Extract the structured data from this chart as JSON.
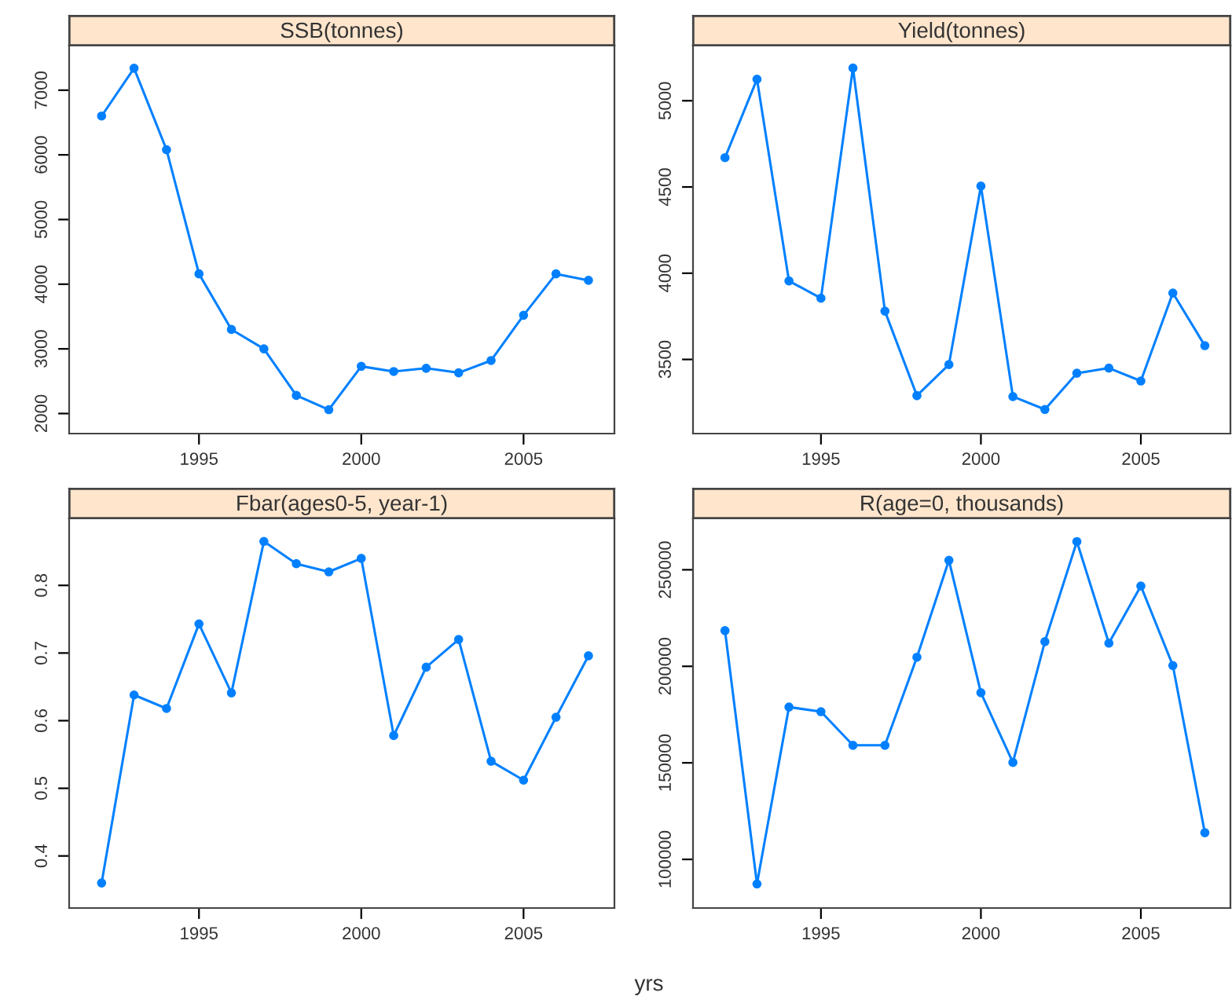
{
  "chart_data": [
    {
      "type": "line",
      "title": "SSB(tonnes)",
      "x": [
        1992,
        1993,
        1994,
        1995,
        1996,
        1997,
        1998,
        1999,
        2000,
        2001,
        2002,
        2003,
        2004,
        2005,
        2006,
        2007
      ],
      "series": [
        {
          "color": "#0080ff",
          "values": [
            6600,
            7340,
            6080,
            4160,
            3300,
            3000,
            2280,
            2060,
            2730,
            2650,
            2700,
            2630,
            2820,
            3520,
            4160,
            4060
          ]
        }
      ],
      "xlim": [
        1991.0,
        2007.8
      ],
      "ylim": [
        1690,
        7690
      ],
      "xticks": [
        1995,
        2000,
        2005
      ],
      "yticks": [
        2000,
        3000,
        4000,
        5000,
        6000,
        7000
      ],
      "marker": "circle",
      "line_style": "solid",
      "grid": false
    },
    {
      "type": "line",
      "title": "Yield(tonnes)",
      "x": [
        1992,
        1993,
        1994,
        1995,
        1996,
        1997,
        1998,
        1999,
        2000,
        2001,
        2002,
        2003,
        2004,
        2005,
        2006,
        2007
      ],
      "series": [
        {
          "color": "#0080ff",
          "values": [
            4670,
            5125,
            3955,
            3855,
            5190,
            3780,
            3290,
            3470,
            4505,
            3285,
            3210,
            3420,
            3450,
            3375,
            3885,
            3580
          ]
        }
      ],
      "xlim": [
        1991.0,
        2007.8
      ],
      "ylim": [
        3070,
        5320
      ],
      "xticks": [
        1995,
        2000,
        2005
      ],
      "yticks": [
        3500,
        4000,
        4500,
        5000
      ],
      "marker": "circle",
      "line_style": "solid",
      "grid": false
    },
    {
      "type": "line",
      "title": "Fbar(ages0-5, year-1)",
      "x": [
        1992,
        1993,
        1994,
        1995,
        1996,
        1997,
        1998,
        1999,
        2000,
        2001,
        2002,
        2003,
        2004,
        2005,
        2006,
        2007
      ],
      "series": [
        {
          "color": "#0080ff",
          "values": [
            0.36,
            0.638,
            0.618,
            0.743,
            0.641,
            0.865,
            0.832,
            0.82,
            0.84,
            0.578,
            0.679,
            0.72,
            0.54,
            0.512,
            0.605,
            0.696
          ]
        }
      ],
      "xlim": [
        1991.0,
        2007.8
      ],
      "ylim": [
        0.323,
        0.899
      ],
      "xticks": [
        1995,
        2000,
        2005
      ],
      "yticks": [
        0.4,
        0.5,
        0.6,
        0.7,
        0.8
      ],
      "marker": "circle",
      "line_style": "solid",
      "grid": false
    },
    {
      "type": "line",
      "title": "R(age=0, thousands)",
      "xlabel": "yrs",
      "x": [
        1992,
        1993,
        1994,
        1995,
        1996,
        1997,
        1998,
        1999,
        2000,
        2001,
        2002,
        2003,
        2004,
        2005,
        2006,
        2007
      ],
      "series": [
        {
          "color": "#0080ff",
          "values": [
            218500,
            87300,
            178900,
            176500,
            159100,
            159100,
            204700,
            254900,
            186300,
            150200,
            212800,
            264600,
            212000,
            241600,
            200400,
            113800
          ]
        }
      ],
      "xlim": [
        1991.0,
        2007.8
      ],
      "ylim": [
        74800,
        276600
      ],
      "xticks": [
        1995,
        2000,
        2005
      ],
      "yticks": [
        100000,
        150000,
        200000,
        250000
      ],
      "marker": "circle",
      "line_style": "solid",
      "grid": false
    }
  ]
}
